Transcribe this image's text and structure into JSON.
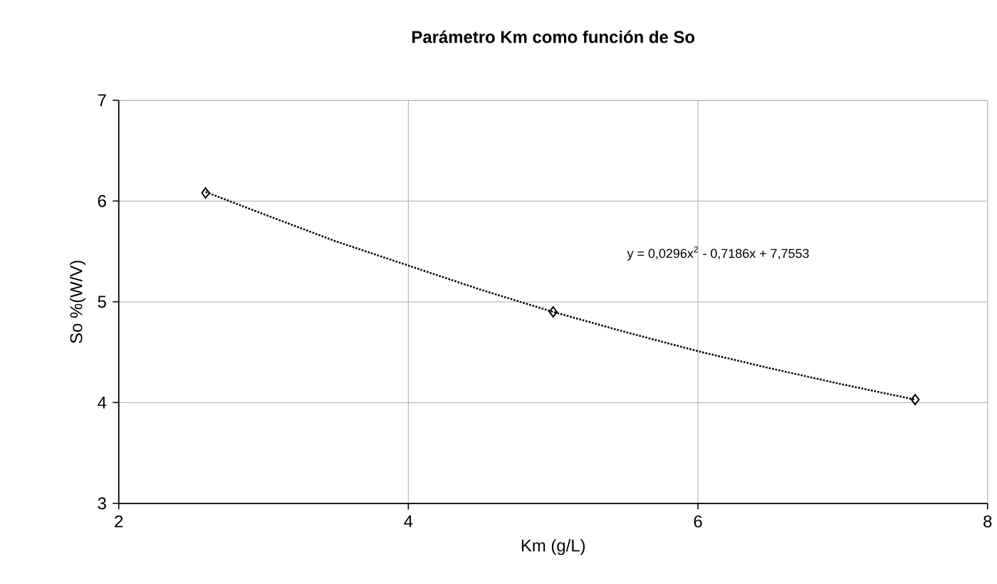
{
  "chart_data": {
    "type": "scatter",
    "title": "Parámetro Km como función de So",
    "xlabel": "Km (g/L)",
    "ylabel": "So %(W/V)",
    "series": [
      {
        "color": "#000000",
        "marker": "diamond",
        "x": [
          2.6,
          5.0,
          7.5
        ],
        "values": [
          6.08,
          4.9,
          4.03
        ]
      },
      {
        "type": "line",
        "color": "#000000",
        "marker": "none",
        "line_style": "dotted",
        "x": [
          2.6,
          3.0,
          3.5,
          4.0,
          4.5,
          5.0,
          5.5,
          6.0,
          6.5,
          7.0,
          7.5
        ],
        "values": [
          6.09,
          5.87,
          5.6,
          5.36,
          5.12,
          4.9,
          4.7,
          4.51,
          4.34,
          4.18,
          4.03
        ]
      }
    ],
    "annotations": [
      "y = 0,0296x$^{2}$ - 0,7186x + 7,7553"
    ],
    "xlim": [
      2,
      8
    ],
    "xticks": [
      2,
      4,
      6,
      8
    ],
    "ylim": [
      3,
      7
    ],
    "yticks": [
      3,
      4,
      5,
      6,
      7
    ],
    "grid": true
  }
}
